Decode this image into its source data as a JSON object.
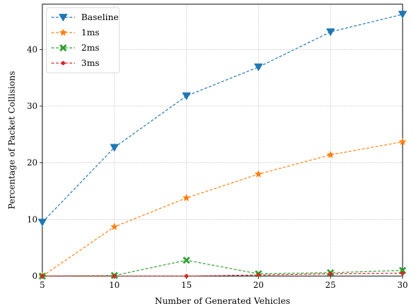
{
  "chart_data": {
    "type": "line",
    "xlabel": "Number of Generated Vehicles",
    "ylabel": "Percentage of Packet Collisions",
    "xlim": [
      5,
      30
    ],
    "ylim": [
      0,
      48
    ],
    "xticks": [
      5,
      10,
      15,
      20,
      25,
      30
    ],
    "yticks": [
      0,
      10,
      20,
      30,
      40
    ],
    "grid": true,
    "grid_style": "dotted",
    "line_style": "dashed",
    "legend_position": "top-left",
    "x": [
      5,
      10,
      15,
      20,
      25,
      30
    ],
    "series": [
      {
        "name": "Baseline",
        "color": "#1f77b4",
        "marker": "triangle-down",
        "values": [
          9.5,
          22.7,
          31.8,
          36.9,
          43.1,
          46.2
        ]
      },
      {
        "name": "1ms",
        "color": "#ff7f0e",
        "marker": "star",
        "values": [
          0.0,
          8.7,
          13.8,
          18.0,
          21.4,
          23.7
        ]
      },
      {
        "name": "2ms",
        "color": "#2ca02c",
        "marker": "x-filled",
        "values": [
          0.0,
          0.1,
          2.8,
          0.4,
          0.6,
          1.0
        ]
      },
      {
        "name": "3ms",
        "color": "#d62728",
        "marker": "circle",
        "values": [
          0.0,
          0.0,
          0.0,
          0.2,
          0.4,
          0.5
        ]
      }
    ]
  }
}
